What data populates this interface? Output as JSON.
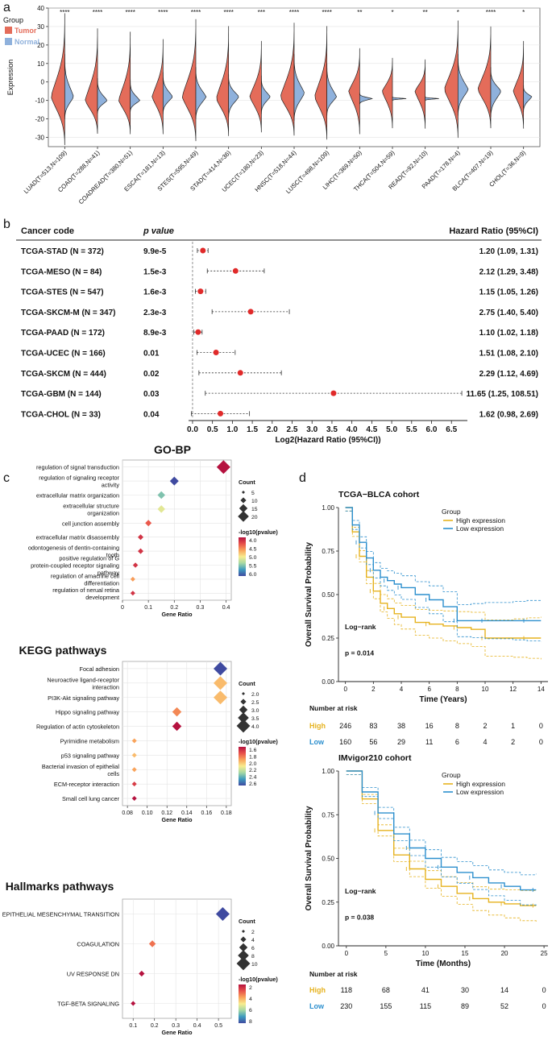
{
  "panel_letters": {
    "a": "a",
    "b": "b",
    "c": "c",
    "d": "d"
  },
  "panel_a": {
    "legend_title": "Group",
    "legend_items": [
      {
        "label": "Tumor",
        "color": "#e46c5a"
      },
      {
        "label": "Normal",
        "color": "#8fb1dc"
      }
    ],
    "chart_data": {
      "type": "violin",
      "ylabel": "Expression",
      "ylim": [
        -35,
        40
      ],
      "yticks": [
        -30,
        -20,
        -10,
        0,
        10,
        20,
        30,
        40
      ],
      "categories": [
        "LUAD(T=513,N=109)",
        "COAD(T=288,N=41)",
        "COADREAD(T=380,N=51)",
        "ESCA(T=181,N=13)",
        "STES(T=595,N=49)",
        "STAD(T=414,N=36)",
        "UCEC(T=180,N=23)",
        "HNSC(T=518,N=44)",
        "LUSC(T=498,N=109)",
        "LIHC(T=369,N=50)",
        "THCA(T=504,N=59)",
        "READ(T=92,N=10)",
        "PAAD(T=178,N=4)",
        "BLCA(T=407,N=19)",
        "CHOL(T=36,N=9)"
      ],
      "significance": [
        "****",
        "****",
        "****",
        "****",
        "****",
        "****",
        "***",
        "****",
        "****",
        "**",
        "*",
        "**",
        "*",
        "****",
        "*"
      ],
      "tumor": {
        "min": [
          -34,
          -28,
          -28,
          -28,
          -32,
          -29,
          -27,
          -29,
          -31,
          -28,
          -25,
          -25,
          -30,
          -25,
          -25
        ],
        "max": [
          37,
          29,
          27,
          23,
          34,
          30,
          22,
          32,
          30,
          18,
          13,
          12,
          33,
          30,
          22
        ],
        "mode": [
          -8,
          -10,
          -10,
          -8,
          -8,
          -9,
          -8,
          -8,
          -8,
          -5,
          -5,
          -5,
          -4,
          -4,
          -5
        ],
        "peak": [
          1,
          0.9,
          0.85,
          0.8,
          1,
          0.9,
          0.85,
          1,
          0.9,
          0.8,
          0.75,
          0.75,
          1,
          0.95,
          0.75
        ]
      },
      "normal": {
        "min": [
          -20,
          -17,
          -16,
          -17,
          -20,
          -19,
          -17,
          -21,
          -18,
          -12,
          -10,
          -10,
          -18,
          -19,
          -16
        ],
        "max": [
          15,
          2,
          1,
          5,
          8,
          4,
          3,
          15,
          10,
          -6,
          -8,
          -8,
          15,
          8,
          -2
        ],
        "mode": [
          -8,
          -10,
          -10,
          -8,
          -8,
          -8,
          -8,
          -6,
          -8,
          -9,
          -9,
          -9,
          -4,
          -5,
          -8
        ],
        "peak": [
          0.65,
          0.7,
          0.7,
          0.7,
          0.75,
          0.75,
          0.65,
          0.75,
          0.7,
          0.9,
          1,
          1,
          0.75,
          0.75,
          0.6
        ]
      }
    }
  },
  "panel_b": {
    "headers": {
      "code": "Cancer code",
      "p": "p value",
      "hr": "Hazard Ratio (95%CI)"
    },
    "rows": [
      {
        "code": "TCGA-STAD (N = 372)",
        "p": "9.9e-5",
        "hr": "1.20 (1.09, 1.31)"
      },
      {
        "code": "TCGA-MESO (N = 84)",
        "p": "1.5e-3",
        "hr": "2.12 (1.29, 3.48)"
      },
      {
        "code": "TCGA-STES (N = 547)",
        "p": "1.6e-3",
        "hr": "1.15 (1.05, 1.26)"
      },
      {
        "code": "TCGA-SKCM-M (N = 347)",
        "p": "2.3e-3",
        "hr": "2.75 (1.40, 5.40)"
      },
      {
        "code": "TCGA-PAAD (N = 172)",
        "p": "8.9e-3",
        "hr": "1.10 (1.02, 1.18)"
      },
      {
        "code": "TCGA-UCEC (N = 166)",
        "p": "0.01",
        "hr": "1.51 (1.08, 2.10)"
      },
      {
        "code": "TCGA-SKCM (N = 444)",
        "p": "0.02",
        "hr": "2.29 (1.12, 4.69)"
      },
      {
        "code": "TCGA-GBM (N = 144)",
        "p": "0.03",
        "hr": "11.65 (1.25, 108.51)"
      },
      {
        "code": "TCGA-CHOL (N = 33)",
        "p": "0.04",
        "hr": "1.62 (0.98, 2.69)"
      }
    ],
    "chart_data": {
      "type": "forest",
      "xlabel": "Log2(Hazard Ratio (95%CI))",
      "xticks": [
        "0.0",
        "0.5",
        "1.0",
        "1.5",
        "2.0",
        "2.5",
        "3.0",
        "3.5",
        "4.0",
        "4.5",
        "5.0",
        "5.5",
        "6.0",
        "6.5"
      ],
      "xlim": [
        -0.1,
        6.9
      ],
      "log2hr": [
        0.26,
        1.08,
        0.2,
        1.46,
        0.14,
        0.59,
        1.2,
        3.54,
        0.7
      ],
      "log2lo": [
        0.12,
        0.37,
        0.07,
        0.49,
        0.03,
        0.11,
        0.16,
        0.32,
        -0.03
      ],
      "log2hi": [
        0.39,
        1.8,
        0.33,
        2.43,
        0.24,
        1.07,
        2.23,
        6.76,
        1.43
      ]
    }
  },
  "panel_c": [
    {
      "title": "GO-BP",
      "xlabel": "Gene Ratio",
      "chart_data": {
        "type": "scatter",
        "terms": [
          "regulation of signal transduction",
          "regulation of signaling receptor activity",
          "extracellular matrix organization",
          "extracellular structure organization",
          "cell junction assembly",
          "extracellular matrix disassembly",
          "odontogenesis of dentin-containing tooth",
          "positive regulation of G protein-coupled receptor signaling pathway",
          "regulation of amacrine cell differentiation",
          "regulation of nerual retina development"
        ],
        "gene_ratio": [
          0.39,
          0.2,
          0.15,
          0.15,
          0.1,
          0.07,
          0.07,
          0.05,
          0.04,
          0.04
        ],
        "count": [
          24,
          12,
          9,
          9,
          6,
          4,
          4,
          3,
          2,
          2
        ],
        "neg_log10_p": [
          4.0,
          6.2,
          5.6,
          5.2,
          4.4,
          4.2,
          4.2,
          4.2,
          4.7,
          4.2
        ],
        "xlim": [
          0,
          0.42
        ],
        "xticks": [
          "0",
          "0.1",
          "0.2",
          "0.3",
          "0.4"
        ]
      },
      "legend": {
        "count_title": "Count",
        "count_ticks": [
          "5",
          "10",
          "15",
          "20"
        ],
        "color_title": "-log10(pvalue)",
        "color_ticks": [
          "4.0",
          "4.5",
          "5.0",
          "5.5",
          "6.0"
        ]
      }
    },
    {
      "title": "KEGG pathways",
      "xlabel": "Gene Ratio",
      "chart_data": {
        "type": "scatter",
        "terms": [
          "Focal adhesion",
          "Neuroactive ligand-receptor interaction",
          "PI3K-Akt signaling pathway",
          "Hippo signaling pathway",
          "Regulation of actin cytoskeleton",
          "Pyrimidine metabolism",
          "p53 signaling pathway",
          "Bacterial invasion of epithelial cells",
          "ECM-receptor interaction",
          "Small cell lung cancer"
        ],
        "gene_ratio": [
          0.174,
          0.174,
          0.174,
          0.13,
          0.13,
          0.087,
          0.087,
          0.087,
          0.087,
          0.087
        ],
        "count": [
          4,
          4,
          4,
          3,
          3,
          2,
          2,
          2,
          2,
          2
        ],
        "neg_log10_p": [
          2.5,
          1.95,
          1.95,
          1.85,
          1.6,
          1.9,
          1.95,
          1.9,
          1.7,
          1.6
        ],
        "xlim": [
          0.075,
          0.185
        ],
        "xticks": [
          "0.08",
          "0.10",
          "0.12",
          "0.14",
          "0.16",
          "0.18"
        ]
      },
      "legend": {
        "count_title": "Count",
        "count_ticks": [
          "2.0",
          "2.5",
          "3.0",
          "3.5",
          "4.0"
        ],
        "color_title": "-log10(pvalue)",
        "color_ticks": [
          "1.6",
          "1.8",
          "2.0",
          "2.2",
          "2.4",
          "2.6"
        ]
      }
    },
    {
      "title": "Hallmarks pathways",
      "xlabel": "Gene Ratio",
      "chart_data": {
        "type": "scatter",
        "terms": [
          "EPITHELIAL MESENCHYMAL TRANSITION",
          "COAGULATION",
          "UV RESPONSE DN",
          "TGF-BETA SIGNALING"
        ],
        "gene_ratio": [
          0.52,
          0.19,
          0.14,
          0.1
        ],
        "count": [
          11,
          4,
          3,
          2
        ],
        "neg_log10_p": [
          8.5,
          3.5,
          2.0,
          2.0
        ],
        "xlim": [
          0.05,
          0.56
        ],
        "xticks": [
          "0.1",
          "0.2",
          "0.3",
          "0.4",
          "0.5"
        ]
      },
      "legend": {
        "count_title": "Count",
        "count_ticks": [
          "2",
          "4",
          "6",
          "8",
          "10"
        ],
        "color_title": "-log10(pvalue)",
        "color_ticks": [
          "2",
          "4",
          "6",
          "8"
        ]
      }
    }
  ],
  "panel_d": [
    {
      "title": "TCGA−BLCA cohort",
      "legend_title": "Group",
      "series_names": [
        "High expression",
        "Low expression"
      ],
      "colors": {
        "high": "#e6b21e",
        "low": "#2c8fce"
      },
      "logrank": "Log−rank",
      "pvalue": "p = 0.014",
      "ylabel": "Overall Survival Probability",
      "xlabel": "Time (Years)",
      "risk_title": "Number at risk",
      "risk": {
        "high_label": "High",
        "low_label": "Low",
        "high": [
          "246",
          "83",
          "38",
          "16",
          "8",
          "2",
          "1",
          "0"
        ],
        "low": [
          "160",
          "56",
          "29",
          "11",
          "6",
          "4",
          "2",
          "0"
        ]
      },
      "chart_data": {
        "type": "line",
        "xlim": [
          -0.5,
          14.5
        ],
        "ylim": [
          0,
          1
        ],
        "xticks": [
          "0",
          "2",
          "4",
          "6",
          "8",
          "10",
          "12",
          "14"
        ],
        "yticks": [
          "0.00",
          "0.25",
          "0.50",
          "0.75",
          "1.00"
        ],
        "series": [
          {
            "name": "High expression",
            "x": [
              0,
              0.5,
              1,
              1.5,
              2,
              2.5,
              3,
              3.5,
              4,
              5,
              6,
              7,
              8,
              9,
              10,
              12,
              13,
              14
            ],
            "y": [
              1,
              0.86,
              0.72,
              0.6,
              0.52,
              0.45,
              0.42,
              0.39,
              0.37,
              0.34,
              0.33,
              0.32,
              0.31,
              0.3,
              0.25,
              0.25,
              0.25,
              0.25
            ]
          },
          {
            "name": "Low expression",
            "x": [
              0,
              0.5,
              1,
              1.5,
              2,
              2.5,
              3,
              3.5,
              4,
              5,
              6,
              7,
              8,
              9,
              10,
              12,
              13,
              14
            ],
            "y": [
              1,
              0.9,
              0.8,
              0.71,
              0.64,
              0.6,
              0.58,
              0.56,
              0.54,
              0.5,
              0.47,
              0.43,
              0.35,
              0.35,
              0.35,
              0.35,
              0.35,
              0.35
            ]
          }
        ]
      }
    },
    {
      "title": "IMvigor210 cohort",
      "legend_title": "Group",
      "series_names": [
        "High expression",
        "Low expression"
      ],
      "colors": {
        "high": "#e6b21e",
        "low": "#2c8fce"
      },
      "logrank": "Log−rank",
      "pvalue": "p = 0.038",
      "ylabel": "Overall Survival Probability",
      "xlabel": "Time (Months)",
      "risk_title": "Number at risk",
      "risk": {
        "high_label": "High",
        "low_label": "Low",
        "high": [
          "118",
          "68",
          "41",
          "30",
          "14",
          "0"
        ],
        "low": [
          "230",
          "155",
          "115",
          "89",
          "52",
          "0"
        ]
      },
      "chart_data": {
        "type": "line",
        "xlim": [
          -1,
          25.5
        ],
        "ylim": [
          0,
          1
        ],
        "xticks": [
          "0",
          "5",
          "10",
          "15",
          "20",
          "25"
        ],
        "yticks": [
          "0.00",
          "0.25",
          "0.50",
          "0.75",
          "1.00"
        ],
        "series": [
          {
            "name": "High expression",
            "x": [
              0,
              2,
              4,
              6,
              8,
              10,
              12,
              14,
              16,
              18,
              20,
              22,
              24
            ],
            "y": [
              1,
              0.84,
              0.66,
              0.52,
              0.44,
              0.38,
              0.34,
              0.3,
              0.27,
              0.25,
              0.24,
              0.23,
              0.23
            ]
          },
          {
            "name": "Low expression",
            "x": [
              0,
              2,
              4,
              6,
              8,
              10,
              12,
              14,
              16,
              18,
              20,
              22,
              24
            ],
            "y": [
              1,
              0.88,
              0.76,
              0.64,
              0.56,
              0.5,
              0.45,
              0.42,
              0.39,
              0.36,
              0.34,
              0.32,
              0.32
            ]
          }
        ]
      }
    }
  ]
}
